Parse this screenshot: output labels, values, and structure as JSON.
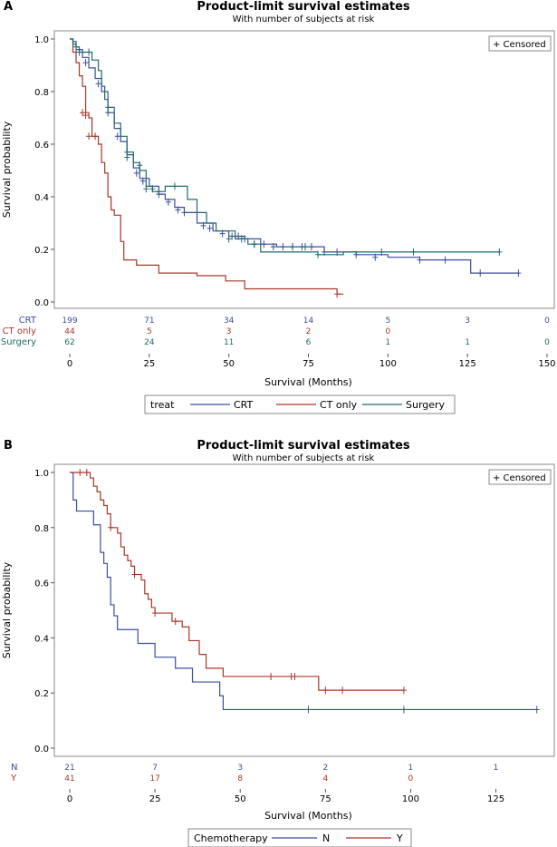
{
  "panels": {
    "a": {
      "label": "A"
    },
    "b": {
      "label": "B"
    }
  },
  "chart_data": [
    {
      "type": "line",
      "panel": "A",
      "title": "Product-limit survival estimates",
      "subtitle": "With number of subjects at risk",
      "xlabel": "Survival (Months)",
      "ylabel": "Survival probability",
      "xlim": [
        0,
        150
      ],
      "ylim": [
        0,
        1
      ],
      "xticks": [
        0,
        25,
        50,
        75,
        100,
        125,
        150
      ],
      "xtick_labels": [
        "0",
        "25",
        "50",
        "75",
        "100",
        "125",
        "150"
      ],
      "yticks": [
        0,
        0.2,
        0.4,
        0.6,
        0.8,
        1.0
      ],
      "ytick_labels": [
        "0.0",
        "0.2",
        "0.4",
        "0.6",
        "0.8",
        "1.0"
      ],
      "censored_label": "+ Censored",
      "legend_title": "treat",
      "series": [
        {
          "name": "CRT",
          "color": "#3c4f9a",
          "steps": [
            [
              0,
              1.0
            ],
            [
              1,
              0.99
            ],
            [
              2,
              0.96
            ],
            [
              4,
              0.93
            ],
            [
              6,
              0.89
            ],
            [
              8,
              0.85
            ],
            [
              10,
              0.8
            ],
            [
              12,
              0.72
            ],
            [
              14,
              0.66
            ],
            [
              16,
              0.61
            ],
            [
              18,
              0.56
            ],
            [
              20,
              0.51
            ],
            [
              22,
              0.47
            ],
            [
              25,
              0.44
            ],
            [
              28,
              0.41
            ],
            [
              30,
              0.39
            ],
            [
              33,
              0.36
            ],
            [
              36,
              0.34
            ],
            [
              40,
              0.3
            ],
            [
              45,
              0.27
            ],
            [
              50,
              0.25
            ],
            [
              55,
              0.24
            ],
            [
              60,
              0.22
            ],
            [
              65,
              0.21
            ],
            [
              70,
              0.21
            ],
            [
              80,
              0.19
            ],
            [
              90,
              0.18
            ],
            [
              100,
              0.17
            ],
            [
              110,
              0.16
            ],
            [
              126,
              0.11
            ],
            [
              141,
              0.11
            ]
          ],
          "censored": [
            [
              5,
              0.91
            ],
            [
              9,
              0.83
            ],
            [
              12,
              0.72
            ],
            [
              15,
              0.63
            ],
            [
              18,
              0.57
            ],
            [
              21,
              0.49
            ],
            [
              23,
              0.46
            ],
            [
              26,
              0.43
            ],
            [
              28,
              0.41
            ],
            [
              31,
              0.38
            ],
            [
              34,
              0.35
            ],
            [
              36,
              0.34
            ],
            [
              42,
              0.29
            ],
            [
              44,
              0.28
            ],
            [
              48,
              0.26
            ],
            [
              51,
              0.25
            ],
            [
              53,
              0.25
            ],
            [
              55,
              0.24
            ],
            [
              58,
              0.22
            ],
            [
              61,
              0.22
            ],
            [
              64,
              0.21
            ],
            [
              67,
              0.21
            ],
            [
              70,
              0.21
            ],
            [
              73,
              0.21
            ],
            [
              76,
              0.21
            ],
            [
              80,
              0.19
            ],
            [
              84,
              0.19
            ],
            [
              90,
              0.18
            ],
            [
              96,
              0.17
            ],
            [
              110,
              0.16
            ],
            [
              118,
              0.16
            ],
            [
              129,
              0.11
            ],
            [
              141,
              0.11
            ]
          ],
          "at_risk": [
            199,
            71,
            34,
            14,
            5,
            3,
            0
          ]
        },
        {
          "name": "CT only",
          "color": "#a8372a",
          "steps": [
            [
              0,
              1.0
            ],
            [
              1,
              0.95
            ],
            [
              2,
              0.91
            ],
            [
              3,
              0.86
            ],
            [
              4,
              0.82
            ],
            [
              5,
              0.72
            ],
            [
              6,
              0.7
            ],
            [
              7,
              0.63
            ],
            [
              9,
              0.6
            ],
            [
              10,
              0.53
            ],
            [
              11,
              0.49
            ],
            [
              12,
              0.4
            ],
            [
              13,
              0.35
            ],
            [
              14,
              0.33
            ],
            [
              16,
              0.23
            ],
            [
              17,
              0.16
            ],
            [
              21,
              0.14
            ],
            [
              28,
              0.11
            ],
            [
              40,
              0.1
            ],
            [
              49,
              0.08
            ],
            [
              55,
              0.05
            ],
            [
              70,
              0.05
            ],
            [
              84,
              0.03
            ],
            [
              86,
              0.03
            ]
          ],
          "censored": [
            [
              2,
              0.95
            ],
            [
              4,
              0.72
            ],
            [
              5,
              0.71
            ],
            [
              6,
              0.63
            ],
            [
              8,
              0.63
            ],
            [
              84,
              0.03
            ]
          ],
          "at_risk": [
            44,
            5,
            3,
            2,
            0
          ]
        },
        {
          "name": "Surgery",
          "color": "#1e6b6b",
          "steps": [
            [
              0,
              1.0
            ],
            [
              1,
              0.98
            ],
            [
              2,
              0.97
            ],
            [
              3,
              0.95
            ],
            [
              7,
              0.92
            ],
            [
              9,
              0.88
            ],
            [
              10,
              0.82
            ],
            [
              11,
              0.77
            ],
            [
              12,
              0.74
            ],
            [
              14,
              0.68
            ],
            [
              16,
              0.63
            ],
            [
              18,
              0.57
            ],
            [
              20,
              0.53
            ],
            [
              22,
              0.5
            ],
            [
              24,
              0.44
            ],
            [
              26,
              0.42
            ],
            [
              28,
              0.42
            ],
            [
              30,
              0.44
            ],
            [
              37,
              0.39
            ],
            [
              40,
              0.34
            ],
            [
              43,
              0.3
            ],
            [
              46,
              0.27
            ],
            [
              52,
              0.24
            ],
            [
              56,
              0.22
            ],
            [
              60,
              0.19
            ],
            [
              66,
              0.19
            ],
            [
              78,
              0.18
            ],
            [
              86,
              0.19
            ],
            [
              125,
              0.19
            ],
            [
              135,
              0.19
            ]
          ],
          "censored": [
            [
              2,
              0.97
            ],
            [
              3,
              0.95
            ],
            [
              6,
              0.95
            ],
            [
              12,
              0.74
            ],
            [
              18,
              0.55
            ],
            [
              22,
              0.52
            ],
            [
              24,
              0.43
            ],
            [
              28,
              0.42
            ],
            [
              33,
              0.44
            ],
            [
              50,
              0.24
            ],
            [
              54,
              0.24
            ],
            [
              58,
              0.22
            ],
            [
              70,
              0.21
            ],
            [
              74,
              0.21
            ],
            [
              78,
              0.18
            ],
            [
              98,
              0.19
            ],
            [
              108,
              0.19
            ],
            [
              135,
              0.19
            ]
          ],
          "at_risk": [
            62,
            24,
            11,
            6,
            1,
            1,
            0
          ]
        }
      ]
    },
    {
      "type": "line",
      "panel": "B",
      "title": "Product-limit survival estimates",
      "subtitle": "With number of subjects at risk",
      "xlabel": "Survival (Months)",
      "ylabel": "Survival probability",
      "xlim": [
        0,
        140
      ],
      "ylim": [
        0,
        1
      ],
      "xticks": [
        0,
        25,
        50,
        75,
        100,
        125
      ],
      "xtick_labels": [
        "0",
        "25",
        "50",
        "75",
        "100",
        "125"
      ],
      "yticks": [
        0,
        0.2,
        0.4,
        0.6,
        0.8,
        1.0
      ],
      "ytick_labels": [
        "0.0",
        "0.2",
        "0.4",
        "0.6",
        "0.8",
        "1.0"
      ],
      "censored_label": "+ Censored",
      "legend_title": "Chemotherapy",
      "series": [
        {
          "name": "N",
          "color": "#3c4f9a",
          "steps": [
            [
              0,
              1.0
            ],
            [
              1,
              0.9
            ],
            [
              2,
              0.86
            ],
            [
              7,
              0.81
            ],
            [
              9,
              0.71
            ],
            [
              10,
              0.67
            ],
            [
              11,
              0.62
            ],
            [
              12,
              0.52
            ],
            [
              13,
              0.48
            ],
            [
              14,
              0.43
            ],
            [
              20,
              0.38
            ],
            [
              25,
              0.33
            ],
            [
              31,
              0.29
            ],
            [
              36,
              0.24
            ],
            [
              44,
              0.19
            ],
            [
              45,
              0.14
            ],
            [
              70,
              0.14
            ],
            [
              98,
              0.14
            ],
            [
              137,
              0.14
            ]
          ],
          "censored": [
            [
              70,
              0.14
            ],
            [
              98,
              0.14
            ],
            [
              137,
              0.14
            ]
          ],
          "at_risk": [
            21,
            7,
            3,
            2,
            1,
            1
          ]
        },
        {
          "name": "Y",
          "color": "#a8372a",
          "steps": [
            [
              0,
              1.0
            ],
            [
              5,
              1.0
            ],
            [
              6,
              0.98
            ],
            [
              7,
              0.95
            ],
            [
              8,
              0.93
            ],
            [
              9,
              0.9
            ],
            [
              10,
              0.88
            ],
            [
              11,
              0.85
            ],
            [
              12,
              0.8
            ],
            [
              14,
              0.78
            ],
            [
              15,
              0.73
            ],
            [
              16,
              0.7
            ],
            [
              17,
              0.68
            ],
            [
              18,
              0.66
            ],
            [
              19,
              0.63
            ],
            [
              21,
              0.61
            ],
            [
              22,
              0.56
            ],
            [
              23,
              0.54
            ],
            [
              24,
              0.51
            ],
            [
              25,
              0.49
            ],
            [
              30,
              0.46
            ],
            [
              33,
              0.44
            ],
            [
              35,
              0.39
            ],
            [
              38,
              0.34
            ],
            [
              40,
              0.29
            ],
            [
              45,
              0.26
            ],
            [
              66,
              0.26
            ],
            [
              73,
              0.21
            ],
            [
              98,
              0.21
            ]
          ],
          "censored": [
            [
              3,
              1.0
            ],
            [
              5,
              1.0
            ],
            [
              12,
              0.8
            ],
            [
              19,
              0.63
            ],
            [
              25,
              0.49
            ],
            [
              31,
              0.46
            ],
            [
              59,
              0.26
            ],
            [
              65,
              0.26
            ],
            [
              66,
              0.26
            ],
            [
              75,
              0.21
            ],
            [
              80,
              0.21
            ],
            [
              98,
              0.21
            ]
          ],
          "at_risk": [
            41,
            17,
            8,
            4,
            0
          ]
        }
      ]
    }
  ]
}
